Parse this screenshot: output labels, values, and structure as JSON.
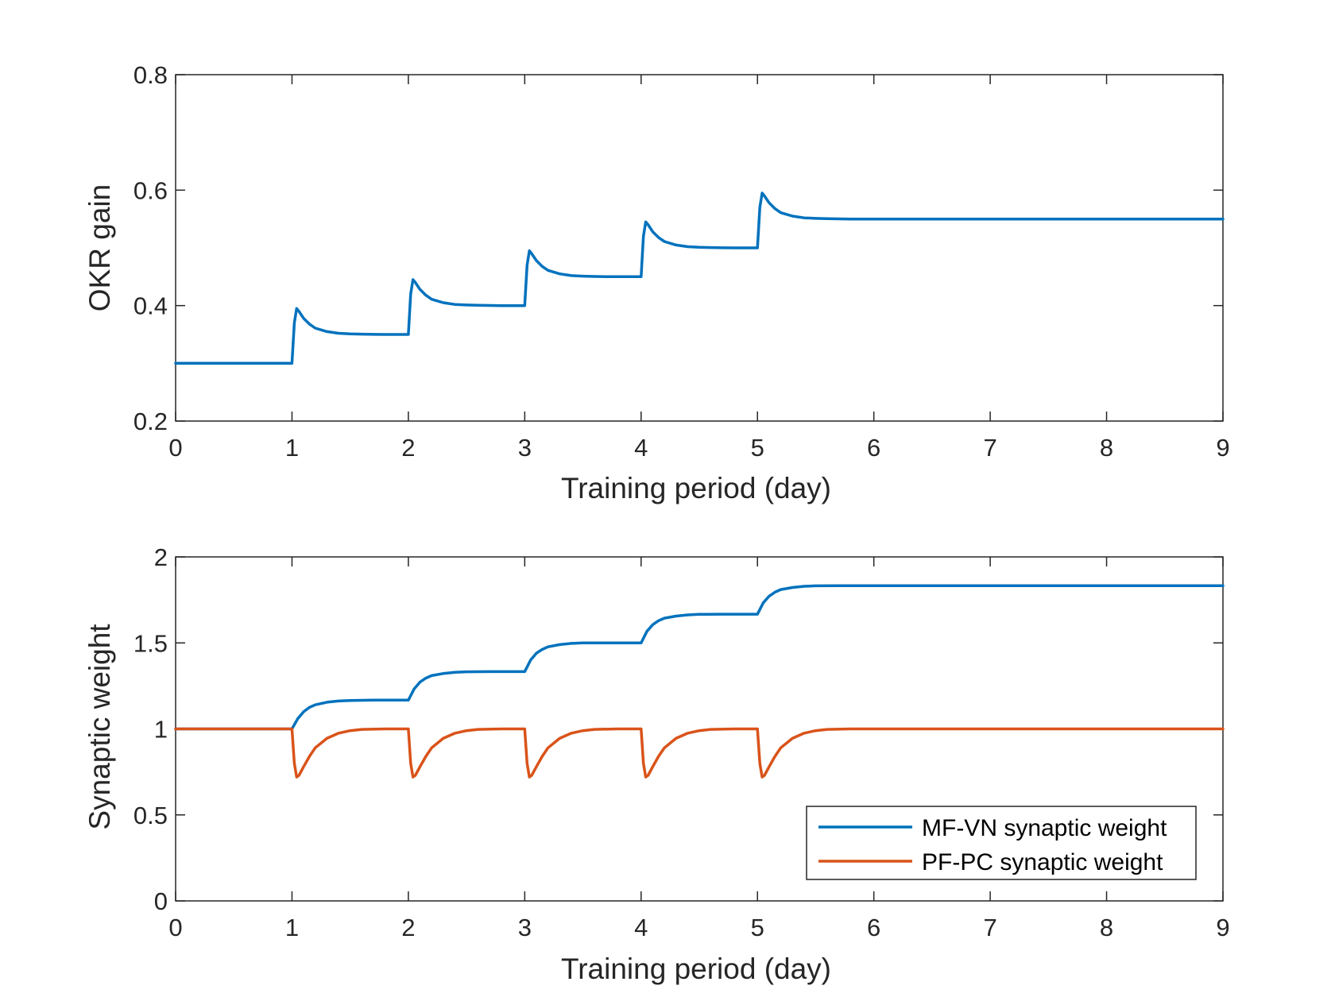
{
  "chart_data": [
    {
      "type": "line",
      "xlabel": "Training period (day)",
      "ylabel": "OKR gain",
      "xlim": [
        0,
        9
      ],
      "ylim": [
        0.2,
        0.8
      ],
      "xticks": [
        0,
        1,
        2,
        3,
        4,
        5,
        6,
        7,
        8,
        9
      ],
      "yticks": [
        0.2,
        0.4,
        0.6,
        0.8
      ],
      "xtick_labels": [
        "0",
        "1",
        "2",
        "3",
        "4",
        "5",
        "6",
        "7",
        "8",
        "9"
      ],
      "ytick_labels": [
        "0.2",
        "0.4",
        "0.6",
        "0.8"
      ],
      "grid": false,
      "series": [
        {
          "color": "#0072BD",
          "x": [
            0,
            1.0,
            1.02,
            1.04,
            1.06,
            1.1,
            1.15,
            1.2,
            1.3,
            1.4,
            1.5,
            1.6,
            1.7,
            1.8,
            2.0,
            2.02,
            2.04,
            2.06,
            2.1,
            2.15,
            2.2,
            2.3,
            2.4,
            2.5,
            2.6,
            2.7,
            2.8,
            3.0,
            3.02,
            3.04,
            3.06,
            3.1,
            3.15,
            3.2,
            3.3,
            3.4,
            3.5,
            3.6,
            3.7,
            3.8,
            4.0,
            4.02,
            4.04,
            4.06,
            4.1,
            4.15,
            4.2,
            4.3,
            4.4,
            4.5,
            4.6,
            4.7,
            4.8,
            5.0,
            5.02,
            5.04,
            5.06,
            5.1,
            5.15,
            5.2,
            5.3,
            5.4,
            5.5,
            5.6,
            5.7,
            5.8,
            9.0
          ],
          "y": [
            0.3,
            0.3,
            0.37,
            0.395,
            0.39,
            0.378,
            0.368,
            0.361,
            0.355,
            0.352,
            0.351,
            0.3505,
            0.3502,
            0.35,
            0.35,
            0.42,
            0.445,
            0.44,
            0.428,
            0.418,
            0.411,
            0.405,
            0.402,
            0.401,
            0.4005,
            0.4002,
            0.4,
            0.4,
            0.47,
            0.495,
            0.49,
            0.478,
            0.468,
            0.461,
            0.455,
            0.452,
            0.451,
            0.4505,
            0.4502,
            0.45,
            0.45,
            0.52,
            0.545,
            0.54,
            0.528,
            0.518,
            0.511,
            0.505,
            0.502,
            0.501,
            0.5005,
            0.5002,
            0.5,
            0.5,
            0.57,
            0.595,
            0.59,
            0.578,
            0.568,
            0.561,
            0.555,
            0.552,
            0.551,
            0.5505,
            0.5502,
            0.55,
            0.55
          ]
        }
      ]
    },
    {
      "type": "line",
      "xlabel": "Training period (day)",
      "ylabel": "Synaptic weight",
      "xlim": [
        0,
        9
      ],
      "ylim": [
        0,
        2
      ],
      "xticks": [
        0,
        1,
        2,
        3,
        4,
        5,
        6,
        7,
        8,
        9
      ],
      "yticks": [
        0,
        0.5,
        1,
        1.5,
        2
      ],
      "xtick_labels": [
        "0",
        "1",
        "2",
        "3",
        "4",
        "5",
        "6",
        "7",
        "8",
        "9"
      ],
      "ytick_labels": [
        "0",
        "0.5",
        "1",
        "1.5",
        "2"
      ],
      "grid": false,
      "legend": "bottom-right",
      "series": [
        {
          "name": "MF-VN synaptic weight",
          "color": "#0072BD",
          "x": [
            0,
            1.0,
            1.05,
            1.1,
            1.15,
            1.2,
            1.3,
            1.4,
            1.5,
            1.7,
            2.0,
            2.05,
            2.1,
            2.15,
            2.2,
            2.3,
            2.4,
            2.5,
            2.7,
            3.0,
            3.05,
            3.1,
            3.15,
            3.2,
            3.3,
            3.4,
            3.5,
            3.7,
            4.0,
            4.05,
            4.1,
            4.15,
            4.2,
            4.3,
            4.4,
            4.5,
            4.7,
            5.0,
            5.05,
            5.1,
            5.15,
            5.2,
            5.3,
            5.4,
            5.5,
            5.7,
            9.0
          ],
          "y": [
            1.0,
            1.0,
            1.06,
            1.1,
            1.125,
            1.14,
            1.155,
            1.162,
            1.165,
            1.167,
            1.167,
            1.233,
            1.272,
            1.295,
            1.31,
            1.322,
            1.329,
            1.332,
            1.333,
            1.333,
            1.4,
            1.44,
            1.462,
            1.477,
            1.49,
            1.497,
            1.5,
            1.5,
            1.5,
            1.567,
            1.606,
            1.629,
            1.644,
            1.656,
            1.663,
            1.666,
            1.667,
            1.667,
            1.733,
            1.772,
            1.795,
            1.81,
            1.822,
            1.829,
            1.832,
            1.833,
            1.833
          ]
        },
        {
          "name": "PF-PC synaptic weight",
          "color": "#D95319",
          "x": [
            0,
            1.0,
            1.02,
            1.04,
            1.06,
            1.1,
            1.15,
            1.2,
            1.3,
            1.4,
            1.5,
            1.6,
            1.8,
            2.0,
            2.02,
            2.04,
            2.06,
            2.1,
            2.15,
            2.2,
            2.3,
            2.4,
            2.5,
            2.6,
            2.8,
            3.0,
            3.02,
            3.04,
            3.06,
            3.1,
            3.15,
            3.2,
            3.3,
            3.4,
            3.5,
            3.6,
            3.8,
            4.0,
            4.02,
            4.04,
            4.06,
            4.1,
            4.15,
            4.2,
            4.3,
            4.4,
            4.5,
            4.6,
            4.8,
            5.0,
            5.02,
            5.04,
            5.06,
            5.1,
            5.15,
            5.2,
            5.3,
            5.4,
            5.5,
            5.6,
            5.8,
            9.0
          ],
          "y": [
            1.0,
            1.0,
            0.8,
            0.72,
            0.73,
            0.78,
            0.84,
            0.89,
            0.945,
            0.975,
            0.99,
            0.997,
            1.0,
            1.0,
            0.8,
            0.72,
            0.73,
            0.78,
            0.84,
            0.89,
            0.945,
            0.975,
            0.99,
            0.997,
            1.0,
            1.0,
            0.8,
            0.72,
            0.73,
            0.78,
            0.84,
            0.89,
            0.945,
            0.975,
            0.99,
            0.997,
            1.0,
            1.0,
            0.8,
            0.72,
            0.73,
            0.78,
            0.84,
            0.89,
            0.945,
            0.975,
            0.99,
            0.997,
            1.0,
            1.0,
            0.8,
            0.72,
            0.73,
            0.78,
            0.84,
            0.89,
            0.945,
            0.975,
            0.99,
            0.997,
            1.0,
            1.0
          ]
        }
      ]
    }
  ]
}
